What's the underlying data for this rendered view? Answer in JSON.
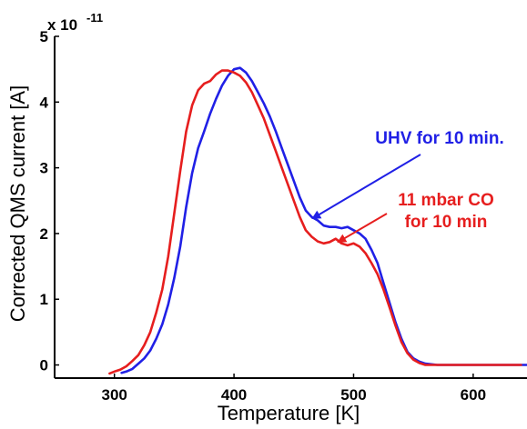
{
  "chart_data": {
    "type": "line",
    "xlabel": "Temperature [K]",
    "ylabel": "Corrected QMS current [A]",
    "y_exponent_base": "x 10",
    "y_exponent_power": "-11",
    "xlim": [
      250,
      645
    ],
    "ylim": [
      -0.2,
      5
    ],
    "x_ticks": [
      300,
      400,
      500,
      600
    ],
    "y_ticks": [
      0,
      1,
      2,
      3,
      4,
      5
    ],
    "grid": false,
    "series": [
      {
        "name": "UHV for 10 min.",
        "color": "#2020e6",
        "points": [
          [
            306,
            -0.12
          ],
          [
            310,
            -0.1
          ],
          [
            315,
            -0.06
          ],
          [
            320,
            0.02
          ],
          [
            325,
            0.1
          ],
          [
            330,
            0.22
          ],
          [
            335,
            0.4
          ],
          [
            340,
            0.62
          ],
          [
            345,
            0.92
          ],
          [
            350,
            1.32
          ],
          [
            355,
            1.8
          ],
          [
            360,
            2.4
          ],
          [
            365,
            2.92
          ],
          [
            370,
            3.3
          ],
          [
            375,
            3.55
          ],
          [
            380,
            3.82
          ],
          [
            385,
            4.05
          ],
          [
            390,
            4.25
          ],
          [
            395,
            4.4
          ],
          [
            400,
            4.5
          ],
          [
            405,
            4.52
          ],
          [
            410,
            4.45
          ],
          [
            415,
            4.32
          ],
          [
            420,
            4.15
          ],
          [
            425,
            3.98
          ],
          [
            430,
            3.78
          ],
          [
            435,
            3.55
          ],
          [
            440,
            3.3
          ],
          [
            445,
            3.05
          ],
          [
            450,
            2.8
          ],
          [
            455,
            2.55
          ],
          [
            460,
            2.35
          ],
          [
            465,
            2.25
          ],
          [
            470,
            2.2
          ],
          [
            475,
            2.12
          ],
          [
            480,
            2.1
          ],
          [
            485,
            2.1
          ],
          [
            490,
            2.08
          ],
          [
            495,
            2.1
          ],
          [
            500,
            2.05
          ],
          [
            505,
            2.0
          ],
          [
            510,
            1.92
          ],
          [
            515,
            1.75
          ],
          [
            520,
            1.55
          ],
          [
            525,
            1.25
          ],
          [
            530,
            0.95
          ],
          [
            535,
            0.65
          ],
          [
            540,
            0.4
          ],
          [
            545,
            0.2
          ],
          [
            550,
            0.1
          ],
          [
            555,
            0.05
          ],
          [
            560,
            0.02
          ],
          [
            570,
            0.0
          ],
          [
            580,
            0.0
          ],
          [
            600,
            0.0
          ],
          [
            620,
            0.0
          ],
          [
            645,
            0.0
          ]
        ]
      },
      {
        "name": "11 mbar CO for 10 min",
        "color": "#e61e1e",
        "points": [
          [
            296,
            -0.13
          ],
          [
            300,
            -0.1
          ],
          [
            305,
            -0.07
          ],
          [
            310,
            -0.02
          ],
          [
            315,
            0.06
          ],
          [
            320,
            0.15
          ],
          [
            325,
            0.3
          ],
          [
            330,
            0.5
          ],
          [
            335,
            0.8
          ],
          [
            340,
            1.15
          ],
          [
            345,
            1.65
          ],
          [
            350,
            2.3
          ],
          [
            355,
            2.95
          ],
          [
            360,
            3.55
          ],
          [
            365,
            3.95
          ],
          [
            370,
            4.18
          ],
          [
            375,
            4.28
          ],
          [
            380,
            4.32
          ],
          [
            385,
            4.42
          ],
          [
            390,
            4.48
          ],
          [
            395,
            4.48
          ],
          [
            400,
            4.45
          ],
          [
            405,
            4.4
          ],
          [
            410,
            4.3
          ],
          [
            415,
            4.15
          ],
          [
            420,
            3.95
          ],
          [
            425,
            3.75
          ],
          [
            430,
            3.5
          ],
          [
            435,
            3.25
          ],
          [
            440,
            3.0
          ],
          [
            445,
            2.75
          ],
          [
            450,
            2.5
          ],
          [
            455,
            2.25
          ],
          [
            460,
            2.05
          ],
          [
            465,
            1.95
          ],
          [
            470,
            1.88
          ],
          [
            475,
            1.85
          ],
          [
            480,
            1.87
          ],
          [
            485,
            1.92
          ],
          [
            490,
            1.85
          ],
          [
            495,
            1.82
          ],
          [
            500,
            1.85
          ],
          [
            505,
            1.8
          ],
          [
            510,
            1.7
          ],
          [
            515,
            1.55
          ],
          [
            520,
            1.38
          ],
          [
            525,
            1.15
          ],
          [
            530,
            0.88
          ],
          [
            535,
            0.6
          ],
          [
            540,
            0.35
          ],
          [
            545,
            0.18
          ],
          [
            550,
            0.08
          ],
          [
            555,
            0.03
          ],
          [
            560,
            0.0
          ],
          [
            570,
            0.0
          ],
          [
            590,
            0.0
          ],
          [
            610,
            0.0
          ],
          [
            640,
            0.0
          ]
        ]
      }
    ],
    "annotations": [
      {
        "lines": [
          "UHV for 10 min."
        ],
        "color": "#2020e6"
      },
      {
        "lines": [
          "11 mbar CO",
          "for 10 min"
        ],
        "color": "#e61e1e"
      }
    ]
  }
}
